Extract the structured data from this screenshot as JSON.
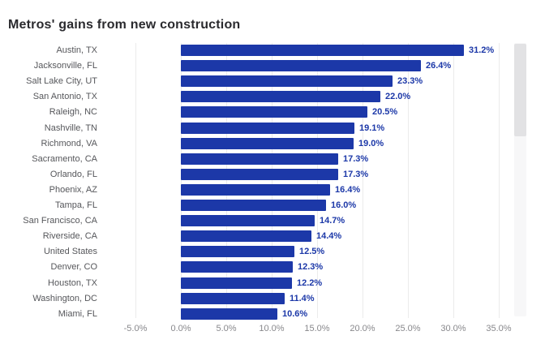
{
  "page": {
    "background": "#ffffff"
  },
  "chart_data": {
    "type": "bar",
    "orientation": "horizontal",
    "title": "Metros' gains from new construction",
    "xlabel": "",
    "ylabel": "",
    "categories": [
      "Austin, TX",
      "Jacksonville, FL",
      "Salt Lake City, UT",
      "San Antonio, TX",
      "Raleigh, NC",
      "Nashville, TN",
      "Richmond, VA",
      "Sacramento, CA",
      "Orlando, FL",
      "Phoenix, AZ",
      "Tampa, FL",
      "San Francisco, CA",
      "Riverside, CA",
      "United States",
      "Denver, CO",
      "Houston, TX",
      "Washington, DC",
      "Miami, FL"
    ],
    "values": [
      31.2,
      26.4,
      23.3,
      22.0,
      20.5,
      19.1,
      19.0,
      17.3,
      17.3,
      16.4,
      16.0,
      14.7,
      14.4,
      12.5,
      12.3,
      12.2,
      11.4,
      10.6
    ],
    "value_labels": [
      "31.2%",
      "26.4%",
      "23.3%",
      "22.0%",
      "20.5%",
      "19.1%",
      "19.0%",
      "17.3%",
      "17.3%",
      "16.4%",
      "16.0%",
      "14.7%",
      "14.4%",
      "12.5%",
      "12.3%",
      "12.2%",
      "11.4%",
      "10.6%"
    ],
    "x_ticks": [
      {
        "value": -5,
        "label": "-5.0%"
      },
      {
        "value": 0,
        "label": "0.0%"
      },
      {
        "value": 5,
        "label": "5.0%"
      },
      {
        "value": 10,
        "label": "10.0%"
      },
      {
        "value": 15,
        "label": "15.0%"
      },
      {
        "value": 20,
        "label": "20.0%"
      },
      {
        "value": 25,
        "label": "25.0%"
      },
      {
        "value": 30,
        "label": "30.0%"
      },
      {
        "value": 35,
        "label": "35.0%"
      }
    ],
    "xlim": [
      -7.5,
      37.5
    ],
    "grid": true,
    "legend": false,
    "colors": {
      "bar": "#1c38a8",
      "value_label": "#1c38a8",
      "category_label": "#56575b",
      "tick_label": "#88888c",
      "gridline": "#ebebeb",
      "title": "#2a2a2e"
    }
  },
  "scrollbar": {
    "track_color": "#f7f7f8",
    "thumb_color": "#e2e2e4"
  }
}
